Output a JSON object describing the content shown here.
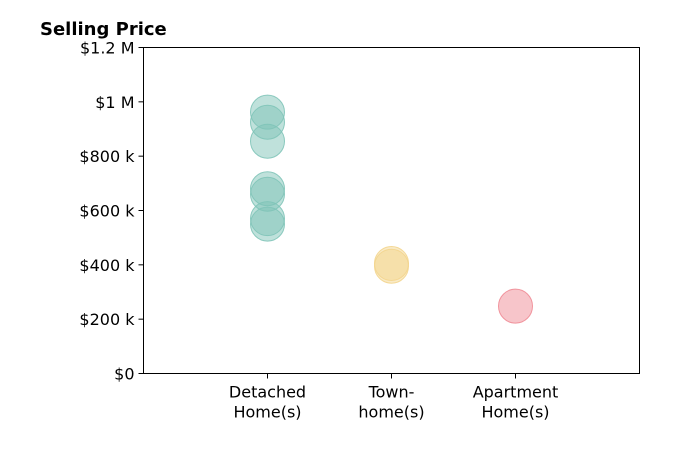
{
  "chart_data": {
    "type": "scatter",
    "title": "Selling Price",
    "xlabel": "",
    "ylabel": "",
    "categories": [
      "Detached Home(s)",
      "Town- home(s)",
      "Apartment Home(s)"
    ],
    "category_lines": [
      [
        "Detached",
        "Home(s)"
      ],
      [
        "Town-",
        "home(s)"
      ],
      [
        "Apartment",
        "Home(s)"
      ]
    ],
    "xlim": [
      -1,
      3
    ],
    "ylim": [
      0,
      1200000
    ],
    "yticks": [
      0,
      200000,
      400000,
      600000,
      800000,
      1000000,
      1200000
    ],
    "ytick_labels": [
      "$0",
      "$200 k",
      "$400 k",
      "$600 k",
      "$800 k",
      "$1 M",
      "$1.2 M"
    ],
    "grid": false,
    "legend": false,
    "series": [
      {
        "category": "Detached Home(s)",
        "color": "#7fc4b8",
        "values": [
          962000,
          925000,
          855000,
          680000,
          660000,
          570000,
          550000
        ]
      },
      {
        "category": "Town- home(s)",
        "color": "#f3d58e",
        "values": [
          405000,
          395000
        ]
      },
      {
        "category": "Apartment Home(s)",
        "color": "#f08b95",
        "values": [
          248000
        ]
      }
    ]
  }
}
